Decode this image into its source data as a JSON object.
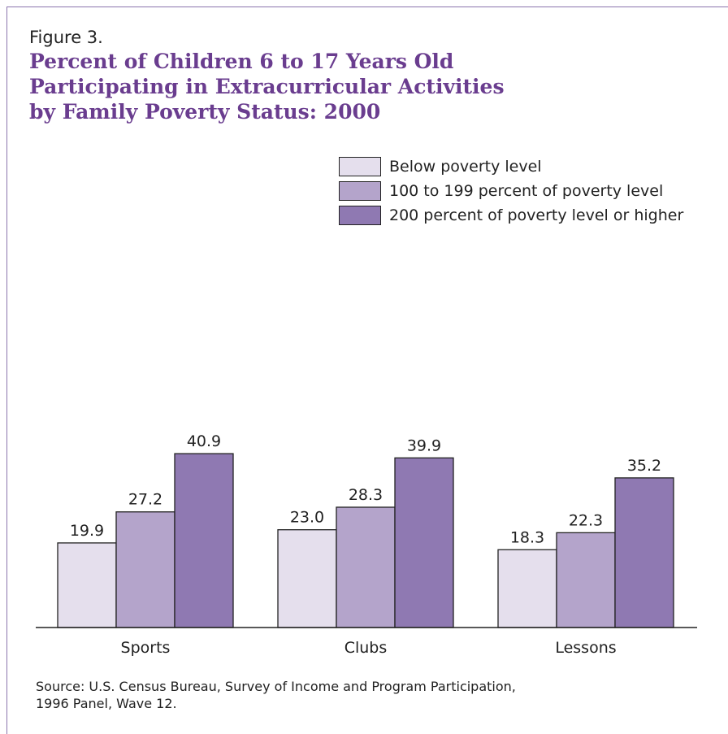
{
  "figure_label": "Figure 3.",
  "title_lines": [
    "Percent of Children 6 to 17 Years Old",
    "Participating in Extracurricular Activities",
    "by Family Poverty Status:  2000"
  ],
  "colors": {
    "series": [
      "#e5dfed",
      "#b4a4cb",
      "#8f79b2"
    ],
    "title": "#6a3d8f",
    "frame": "#8a75ad"
  },
  "chart_data": {
    "type": "bar",
    "categories": [
      "Sports",
      "Clubs",
      "Lessons"
    ],
    "series": [
      {
        "name": "Below poverty level",
        "values": [
          19.9,
          23.0,
          18.3
        ],
        "value_labels": [
          "19.9",
          "23.0",
          "18.3"
        ]
      },
      {
        "name": "100 to 199 percent of poverty level",
        "values": [
          27.2,
          28.3,
          22.3
        ],
        "value_labels": [
          "27.2",
          "28.3",
          "22.3"
        ]
      },
      {
        "name": "200 percent of poverty level or higher",
        "values": [
          40.9,
          39.9,
          35.2
        ],
        "value_labels": [
          "40.9",
          "39.9",
          "35.2"
        ]
      }
    ],
    "ylim": [
      0,
      100
    ],
    "grid": false,
    "legend_position": "top-right",
    "xlabel": "",
    "ylabel": ""
  },
  "source_lines": [
    "Source:  U.S. Census Bureau, Survey of Income and Program Participation,",
    "1996 Panel, Wave 12."
  ]
}
